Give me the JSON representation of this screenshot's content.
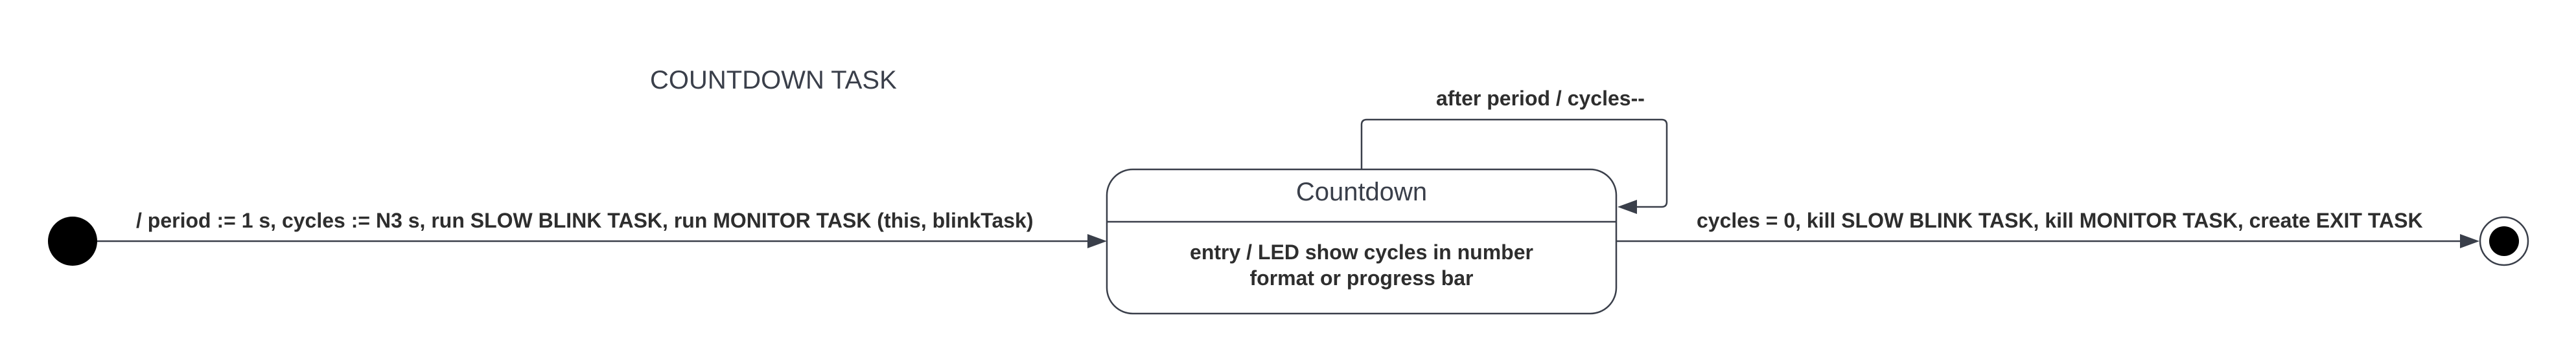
{
  "diagram": {
    "title": "COUNTDOWN TASK",
    "state": {
      "name": "Countdown",
      "entry_line1": "entry / LED show cycles in number",
      "entry_line2": "format or progress bar"
    },
    "transitions": {
      "initial_label": "/ period := 1 s, cycles := N3 s, run SLOW BLINK TASK, run MONITOR TASK (this, blinkTask)",
      "self_loop_label": "after period / cycles--",
      "final_label": "cycles = 0, kill SLOW BLINK TASK, kill MONITOR TASK, create EXIT TASK"
    }
  }
}
